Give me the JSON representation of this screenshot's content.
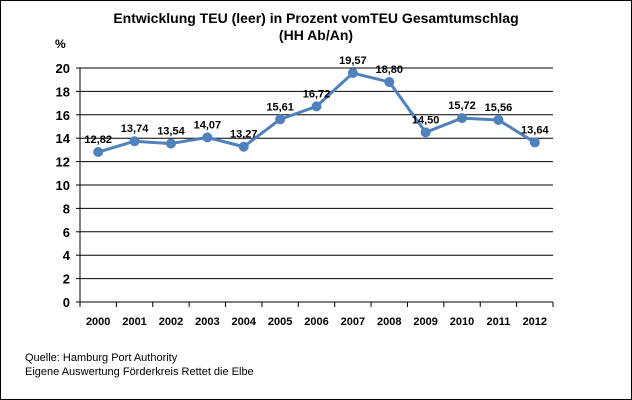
{
  "chart_data": {
    "type": "line",
    "title_line1": "Entwicklung TEU (leer) in Prozent vomTEU Gesamtumschlag",
    "title_line2": "(HH Ab/An)",
    "ylabel": "%",
    "categories": [
      "2000",
      "2001",
      "2002",
      "2003",
      "2004",
      "2005",
      "2006",
      "2007",
      "2008",
      "2009",
      "2010",
      "2011",
      "2012"
    ],
    "values": [
      12.82,
      13.74,
      13.54,
      14.07,
      13.27,
      15.61,
      16.72,
      19.57,
      18.8,
      14.5,
      15.72,
      15.56,
      13.64
    ],
    "data_labels": [
      "12,82",
      "13,74",
      "13,54",
      "14,07",
      "13,27",
      "15,61",
      "16,72",
      "19,57",
      "18,80",
      "14,50",
      "15,72",
      "15,56",
      "13,64"
    ],
    "ylim": [
      0,
      20
    ],
    "yticks": [
      "0",
      "2",
      "4",
      "6",
      "8",
      "10",
      "12",
      "14",
      "16",
      "18",
      "20"
    ],
    "grid": true,
    "legend": "none",
    "line_color": "#4f81bd"
  },
  "source": {
    "line1": "Quelle: Hamburg Port Authority",
    "line2": "Eigene Auswertung Förderkreis Rettet die Elbe"
  }
}
